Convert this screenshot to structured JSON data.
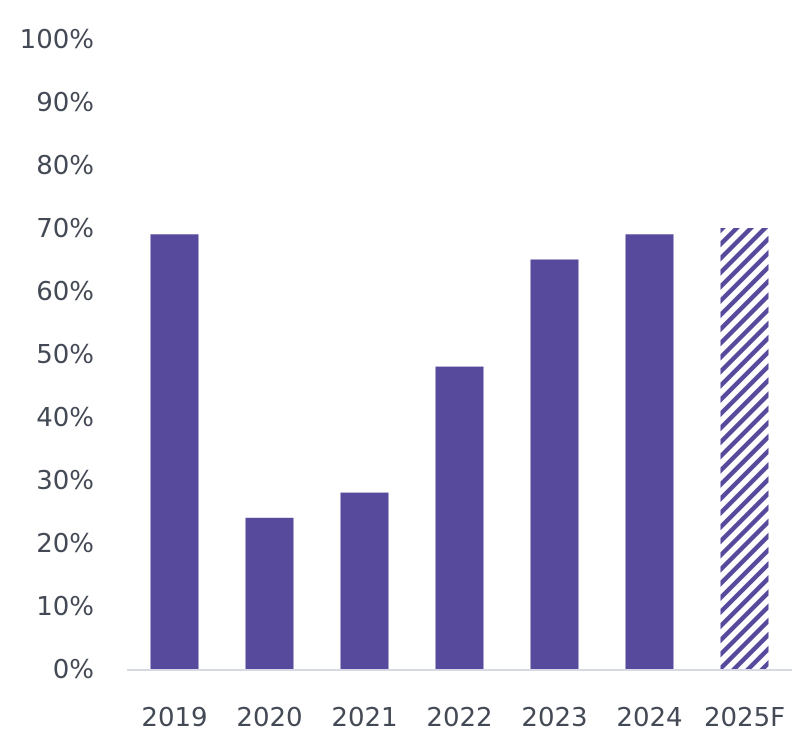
{
  "chart_data": {
    "type": "bar",
    "categories": [
      "2019",
      "2020",
      "2021",
      "2022",
      "2023",
      "2024",
      "2025F"
    ],
    "values": [
      69,
      24,
      28,
      48,
      65,
      69,
      70
    ],
    "forecast": [
      false,
      false,
      false,
      false,
      false,
      false,
      true
    ],
    "ylim": [
      0,
      100
    ],
    "y_ticks": [
      0,
      10,
      20,
      30,
      40,
      50,
      60,
      70,
      80,
      90,
      100
    ],
    "y_tick_format": "percent",
    "grid": false,
    "legend": "none",
    "title": "",
    "xlabel": "",
    "ylabel": "",
    "colors": {
      "bar": "#574a9c",
      "forecast_hatch": "#574a9c",
      "axis": "#d6d8e2",
      "text": "#444a55"
    }
  }
}
